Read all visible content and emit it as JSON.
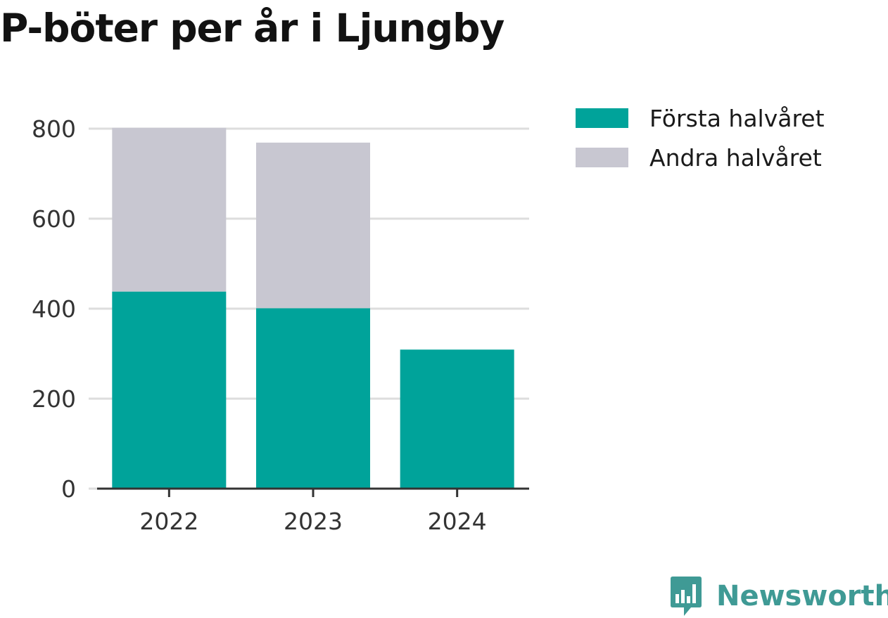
{
  "title": "P-böter per år i Ljungby",
  "brand": {
    "name": "Newsworthy",
    "icon": "bar-chart-speech-bubble-icon",
    "color": "#3f9a95"
  },
  "legend": {
    "position": "top-right",
    "items": [
      {
        "label": "Första halvåret",
        "color": "#00a39a"
      },
      {
        "label": "Andra halvåret",
        "color": "#c8c7d1"
      }
    ]
  },
  "chart_data": {
    "type": "bar",
    "stacked": true,
    "title": "P-böter per år i Ljungby",
    "xlabel": "",
    "ylabel": "",
    "categories": [
      "2022",
      "2023",
      "2024"
    ],
    "series": [
      {
        "name": "Första halvåret",
        "values": [
          438,
          401,
          309
        ],
        "color": "#00a39a"
      },
      {
        "name": "Andra halvåret",
        "values": [
          364,
          368,
          null
        ],
        "color": "#c8c7d1"
      }
    ],
    "ylim": [
      0,
      800
    ],
    "yticks": [
      0,
      200,
      400,
      600,
      800
    ],
    "grid": true,
    "legend": "top-right"
  }
}
